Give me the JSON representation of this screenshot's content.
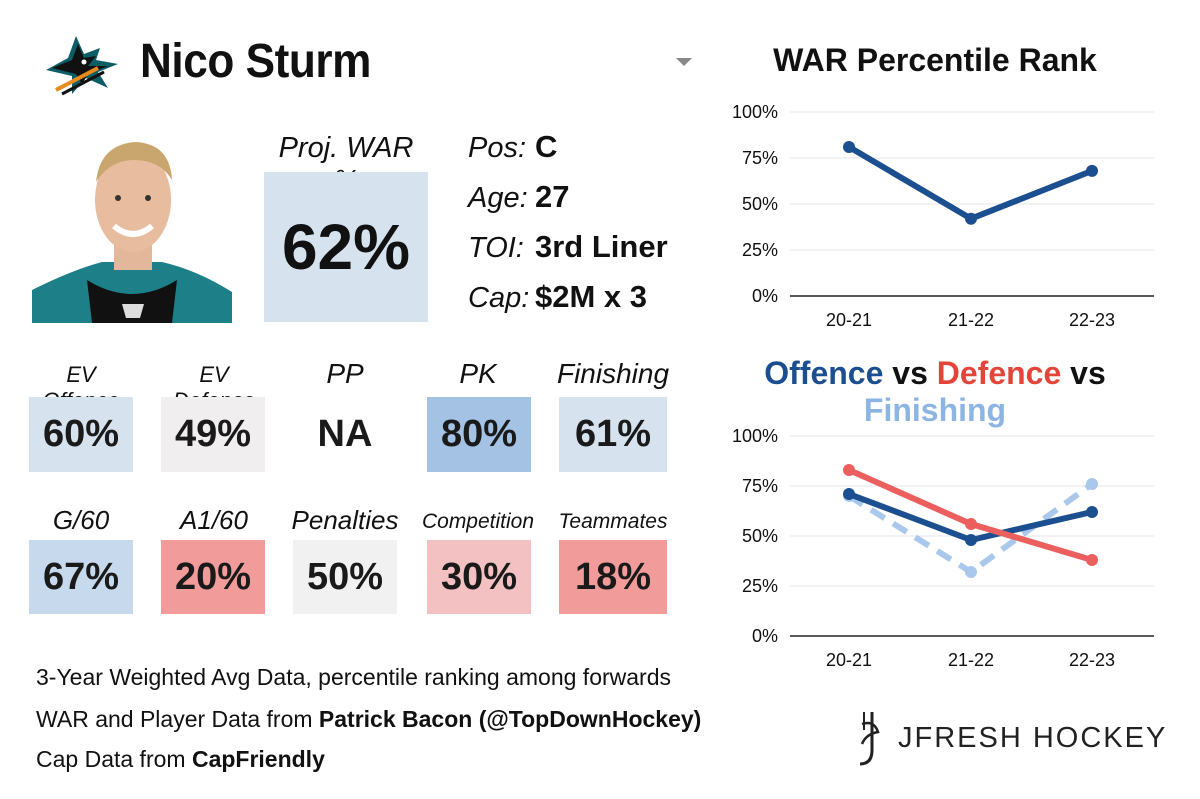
{
  "header": {
    "player_name": "Nico Sturm",
    "team_logo": "sharks-logo-icon",
    "dropdown_icon": "caret-down-icon"
  },
  "proj_war": {
    "label": "Proj. WAR %",
    "value": "62%",
    "color": "#d6e2ee"
  },
  "info": [
    {
      "label": "Pos:",
      "value": "C"
    },
    {
      "label": "Age:",
      "value": "27"
    },
    {
      "label": "TOI:",
      "value": "3rd Liner"
    },
    {
      "label": "Cap:",
      "value": "$2M x 3"
    }
  ],
  "stats_row1": [
    {
      "label": "EV Offence",
      "value": "60%",
      "color": "#d6e2ee"
    },
    {
      "label": "EV Defence",
      "value": "49%",
      "color": "#f0eeee"
    },
    {
      "label": "PP",
      "value": "NA",
      "color": "#ffffff"
    },
    {
      "label": "PK",
      "value": "80%",
      "color": "#a4c2e4"
    },
    {
      "label": "Finishing",
      "value": "61%",
      "color": "#d6e2ee"
    }
  ],
  "stats_row2": [
    {
      "label": "G/60",
      "value": "67%",
      "color": "#c7d9ec"
    },
    {
      "label": "A1/60",
      "value": "20%",
      "color": "#f19b9b"
    },
    {
      "label": "Penalties",
      "value": "50%",
      "color": "#f1f1f1"
    },
    {
      "label": "Competition",
      "value": "30%",
      "color": "#f3c1c1"
    },
    {
      "label": "Teammates",
      "value": "18%",
      "color": "#f19b9b"
    }
  ],
  "footer": {
    "line1": "3-Year Weighted Avg Data, percentile ranking among forwards",
    "line2_prefix": "WAR and Player Data from ",
    "line2_bold": "Patrick Bacon (@TopDownHockey)",
    "line3_prefix": "Cap Data from ",
    "line3_bold": "CapFriendly"
  },
  "branding": {
    "text": "JFRESH HOCKEY",
    "icon": "jfresh-logo-icon"
  },
  "chart_data": [
    {
      "type": "line",
      "title": "WAR Percentile Rank",
      "categories": [
        "20-21",
        "21-22",
        "22-23"
      ],
      "ylim": [
        0,
        100
      ],
      "yticks": [
        "0%",
        "25%",
        "50%",
        "75%",
        "100%"
      ],
      "grid": true,
      "series": [
        {
          "name": "WAR",
          "values": [
            81,
            42,
            68
          ],
          "color": "#1c4f8f",
          "dashed": false
        }
      ]
    },
    {
      "type": "line",
      "title_parts": [
        {
          "text": "Offence",
          "color": "#1c4f8f"
        },
        {
          "text": " vs ",
          "color": "#111111"
        },
        {
          "text": "Defence",
          "color": "#e2453a"
        },
        {
          "text": " vs ",
          "color": "#111111"
        },
        {
          "text": "Finishing",
          "color": "#8db5e3"
        }
      ],
      "categories": [
        "20-21",
        "21-22",
        "22-23"
      ],
      "ylim": [
        0,
        100
      ],
      "yticks": [
        "0%",
        "25%",
        "50%",
        "75%",
        "100%"
      ],
      "grid": true,
      "series": [
        {
          "name": "Finishing",
          "values": [
            70,
            32,
            76
          ],
          "color": "#a9c8eb",
          "dashed": true
        },
        {
          "name": "Offence",
          "values": [
            71,
            48,
            62
          ],
          "color": "#1c4f8f",
          "dashed": false
        },
        {
          "name": "Defence",
          "values": [
            83,
            56,
            38
          ],
          "color": "#ec5f5f",
          "dashed": false
        }
      ]
    }
  ]
}
